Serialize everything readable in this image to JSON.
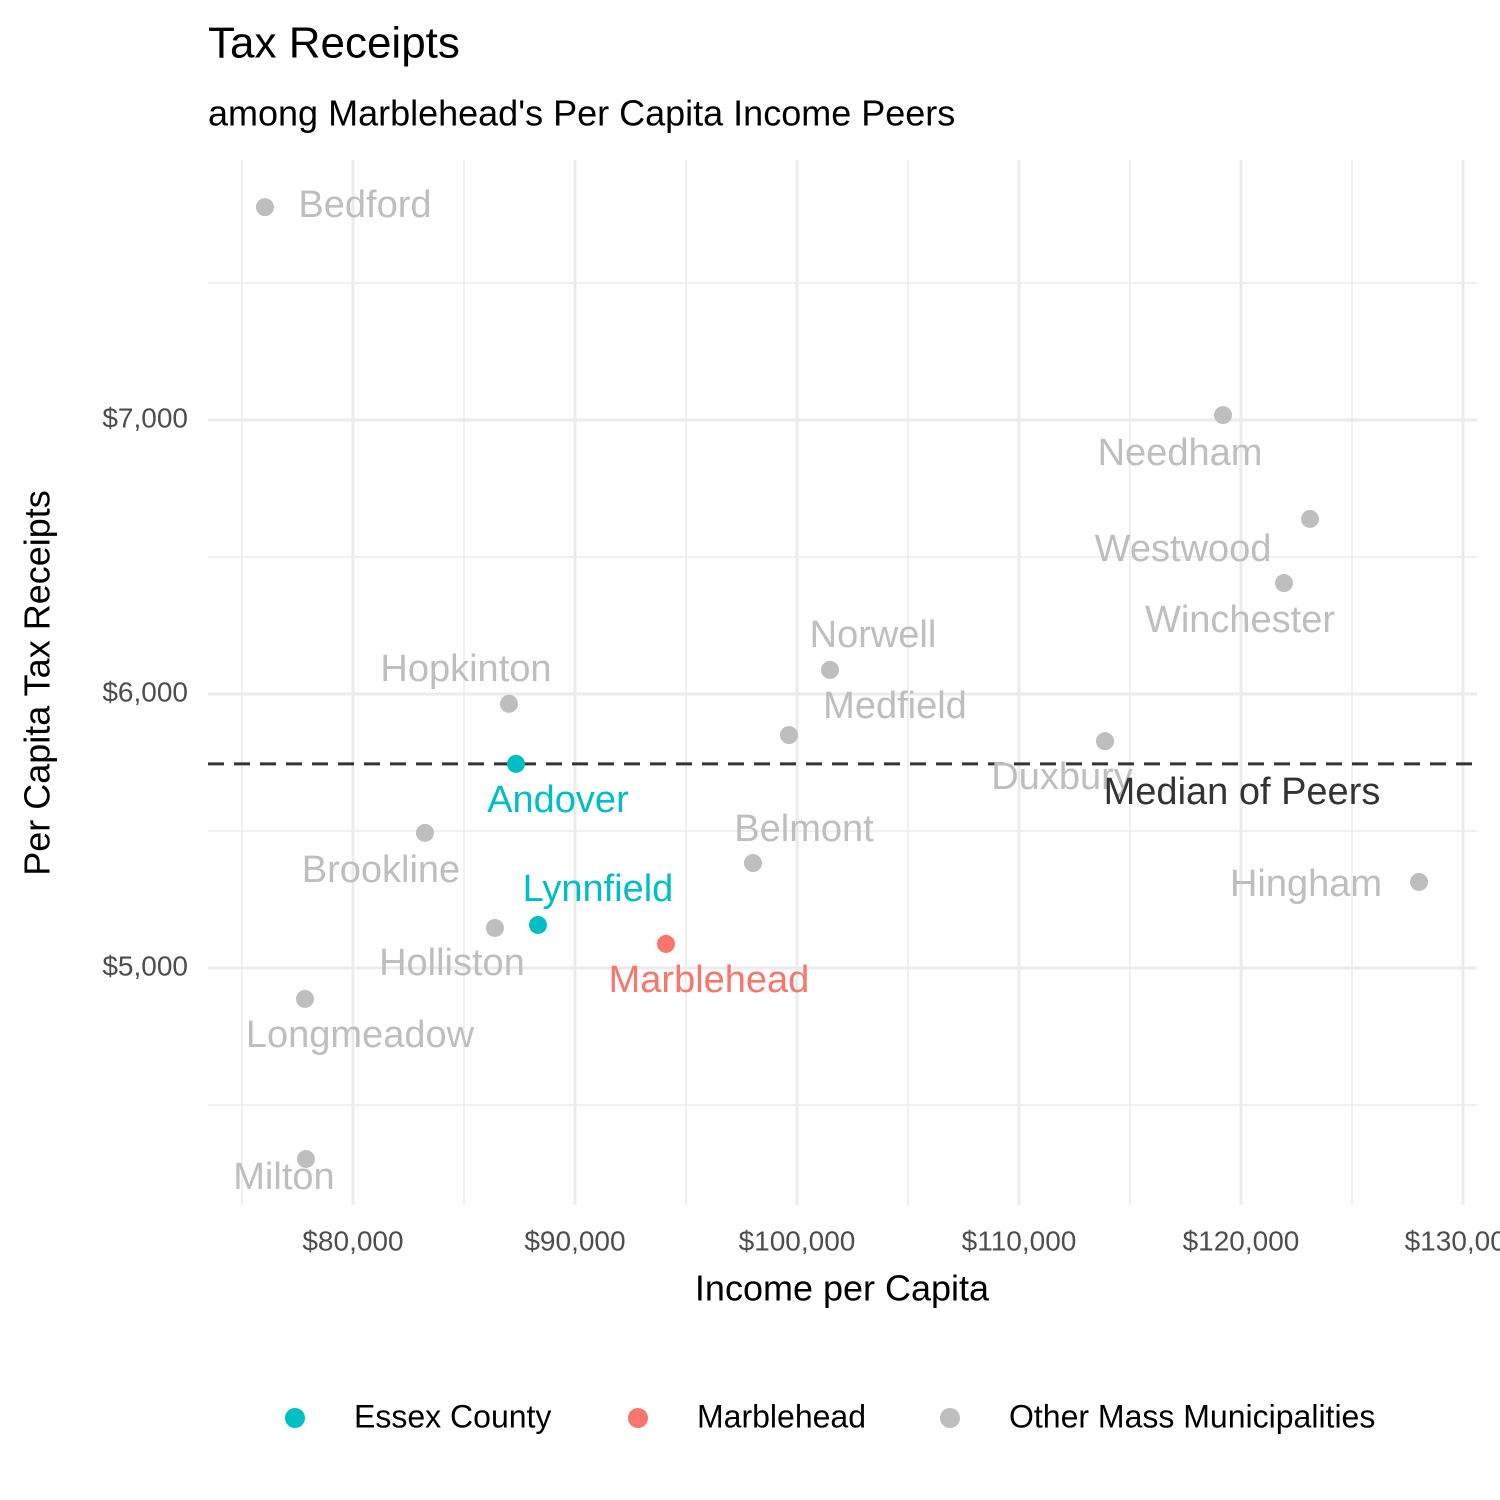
{
  "chart_data": {
    "type": "scatter",
    "title": "Tax Receipts",
    "subtitle": "among Marblehead's Per Capita Income Peers",
    "x_label": "Income per Capita",
    "y_label": "Per Capita Tax Receipts",
    "xlim": [
      73470,
      130630
    ],
    "ylim": [
      4135,
      7949
    ],
    "xticks": [
      {
        "value": 80000,
        "label": "$80,000"
      },
      {
        "value": 90000,
        "label": "$90,000"
      },
      {
        "value": 100000,
        "label": "$100,000"
      },
      {
        "value": 110000,
        "label": "$110,000"
      },
      {
        "value": 120000,
        "label": "$120,000"
      },
      {
        "value": 130000,
        "label": "$130,000"
      }
    ],
    "yticks": [
      {
        "value": 5000,
        "label": "$5,000"
      },
      {
        "value": 6000,
        "label": "$6,000"
      },
      {
        "value": 7000,
        "label": "$7,000"
      }
    ],
    "x_minor_grid": [
      75000,
      85000,
      95000,
      105000,
      115000,
      125000
    ],
    "y_minor_grid": [
      4500,
      5500,
      6500,
      7500
    ],
    "grid": true,
    "legend": "bottom",
    "hline": 5745,
    "hline_label": "Median of Peers",
    "series": [
      {
        "name": "Essex County",
        "color": "#00BFC4",
        "labels": [
          "Andover",
          "Lynnfield"
        ],
        "x": [
          87342,
          88333
        ],
        "values": [
          5745,
          5157
        ]
      },
      {
        "name": "Marblehead",
        "color": "#F8766D",
        "labels": [
          "Marblehead"
        ],
        "x": [
          94099
        ],
        "values": [
          5088
        ]
      },
      {
        "name": "Other Mass Municipalities",
        "color": "#BEBEBE",
        "labels": [
          "Bedford",
          "Needham",
          "Westwood",
          "Winchester",
          "Norwell",
          "Hopkinton",
          "Medfield",
          "Duxbury",
          "Brookline",
          "Belmont",
          "Hingham",
          "Holliston",
          "Longmeadow",
          "Milton"
        ],
        "x": [
          76036,
          119189,
          123108,
          121937,
          101486,
          87027,
          99640,
          113874,
          83243,
          98018,
          128018,
          86396,
          77838,
          77883
        ],
        "values": [
          7777,
          7018,
          6639,
          6405,
          6088,
          5964,
          5850,
          5828,
          5493,
          5383,
          5314,
          5146,
          4887,
          4303
        ]
      }
    ]
  }
}
